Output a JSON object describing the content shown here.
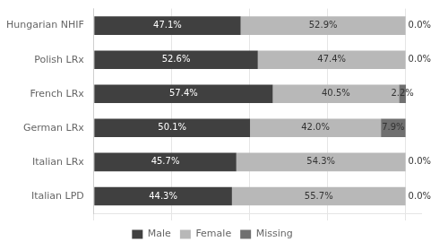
{
  "chart_data": {
    "type": "bar",
    "orientation": "horizontal",
    "stacked": true,
    "categories": [
      "Hungarian NHIF",
      "Polish LRx",
      "French LRx",
      "German LRx",
      "Italian LRx",
      "Italian LPD"
    ],
    "series": [
      {
        "name": "Male",
        "color": "#404040",
        "values": [
          47.1,
          52.6,
          57.4,
          50.1,
          45.7,
          44.3
        ],
        "value_labels": [
          "47.1%",
          "52.6%",
          "57.4%",
          "50.1%",
          "45.7%",
          "44.3%"
        ]
      },
      {
        "name": "Female",
        "color": "#b8b8b8",
        "values": [
          52.9,
          47.4,
          40.5,
          42.0,
          54.3,
          55.7
        ],
        "value_labels": [
          "52.9%",
          "47.4%",
          "40.5%",
          "42.0%",
          "54.3%",
          "55.7%"
        ]
      },
      {
        "name": "Missing",
        "color": "#707070",
        "values": [
          0.0,
          0.0,
          2.2,
          7.9,
          0.0,
          0.0
        ],
        "value_labels": [
          "0.0%",
          "0.0%",
          "2.2%",
          "7.9%",
          "0.0%",
          "0.0%"
        ]
      }
    ],
    "xlim": [
      0,
      105
    ],
    "xticks": [
      0,
      25,
      50,
      75,
      100
    ],
    "grid": true,
    "tick_labels": "y",
    "legend": "bottom",
    "data_labels": true
  }
}
